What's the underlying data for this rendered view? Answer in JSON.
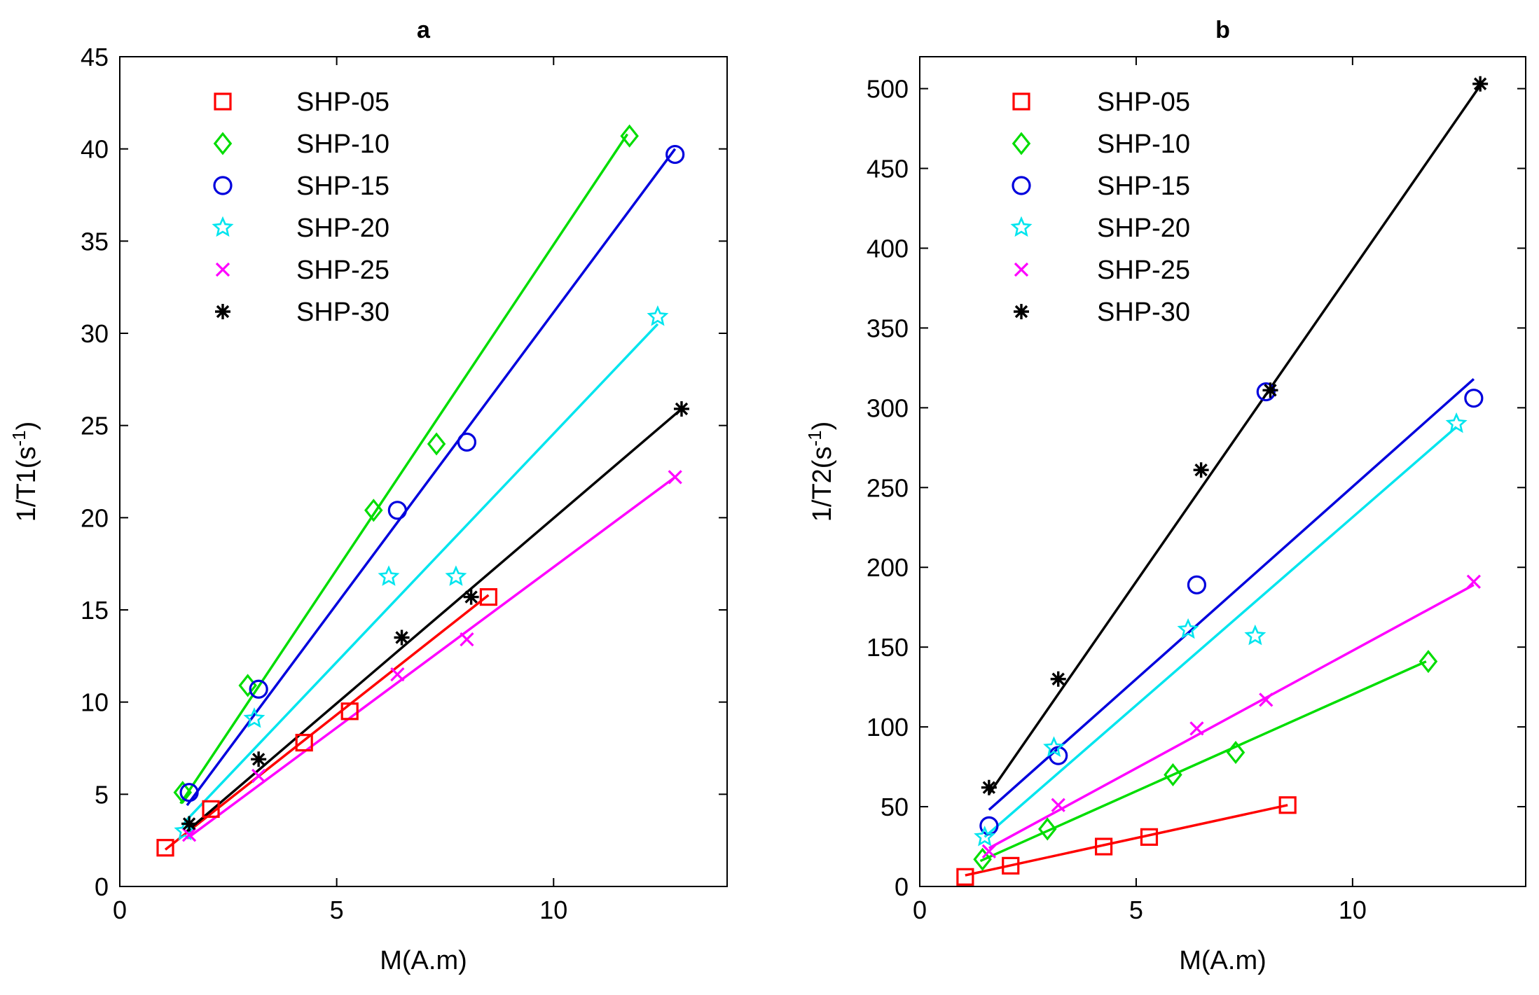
{
  "chart_data": [
    {
      "type": "scatter",
      "title": "a",
      "xlabel": "M(A.m)",
      "ylabel": "1/T1(s",
      "ylabel_sup": "-1",
      "ylabel_close": ")",
      "xlim": [
        0,
        14
      ],
      "ylim": [
        0,
        45
      ],
      "xticks": [
        0,
        5,
        10
      ],
      "yticks": [
        0,
        5,
        10,
        15,
        20,
        25,
        30,
        35,
        40,
        45
      ],
      "legend_position": "top-left",
      "series": [
        {
          "name": "SHP-05",
          "color": "#ff0000",
          "marker": "square",
          "x": [
            1.05,
            2.1,
            4.25,
            5.3,
            8.5
          ],
          "y": [
            2.1,
            4.2,
            7.8,
            9.5,
            15.7
          ],
          "fit_x": [
            1.05,
            8.5
          ],
          "fit_y": [
            2.0,
            15.8
          ]
        },
        {
          "name": "SHP-10",
          "color": "#00dd00",
          "marker": "diamond",
          "x": [
            1.45,
            2.95,
            5.85,
            7.3,
            11.75
          ],
          "y": [
            5.1,
            10.9,
            20.4,
            24.0,
            40.7
          ],
          "fit_x": [
            1.4,
            11.7
          ],
          "fit_y": [
            4.5,
            40.8
          ]
        },
        {
          "name": "SHP-15",
          "color": "#0000dd",
          "marker": "circle",
          "x": [
            1.6,
            3.2,
            6.4,
            8.0,
            12.8
          ],
          "y": [
            5.1,
            10.7,
            20.4,
            24.1,
            39.7
          ],
          "fit_x": [
            1.55,
            12.8
          ],
          "fit_y": [
            4.4,
            40.0
          ]
        },
        {
          "name": "SHP-20",
          "color": "#00e5ee",
          "marker": "star",
          "x": [
            1.5,
            3.1,
            6.2,
            7.75,
            12.4
          ],
          "y": [
            3.0,
            9.1,
            16.8,
            16.8,
            30.9
          ],
          "fit_x": [
            1.5,
            12.4
          ],
          "fit_y": [
            3.5,
            30.5
          ]
        },
        {
          "name": "SHP-25",
          "color": "#ff00ff",
          "marker": "x",
          "x": [
            1.6,
            3.2,
            6.4,
            8.0,
            12.8
          ],
          "y": [
            2.8,
            6.0,
            11.5,
            13.4,
            22.2
          ],
          "fit_x": [
            1.55,
            12.8
          ],
          "fit_y": [
            2.6,
            22.2
          ]
        },
        {
          "name": "SHP-30",
          "color": "#000000",
          "marker": "asterisk",
          "x": [
            1.6,
            3.2,
            6.5,
            8.1,
            12.95
          ],
          "y": [
            3.4,
            6.9,
            13.5,
            15.7,
            25.9
          ],
          "fit_x": [
            1.55,
            12.95
          ],
          "fit_y": [
            3.0,
            25.9
          ]
        }
      ]
    },
    {
      "type": "scatter",
      "title": "b",
      "xlabel": "M(A.m)",
      "ylabel": "1/T2(s",
      "ylabel_sup": "-1",
      "ylabel_close": ")",
      "xlim": [
        0,
        14
      ],
      "ylim": [
        0,
        520
      ],
      "xticks": [
        0,
        5,
        10
      ],
      "yticks": [
        0,
        50,
        100,
        150,
        200,
        250,
        300,
        350,
        400,
        450,
        500
      ],
      "legend_position": "top-left",
      "series": [
        {
          "name": "SHP-05",
          "color": "#ff0000",
          "marker": "square",
          "x": [
            1.05,
            2.1,
            4.25,
            5.3,
            8.5
          ],
          "y": [
            6,
            13,
            25,
            31,
            51
          ],
          "fit_x": [
            1.05,
            8.5
          ],
          "fit_y": [
            7,
            51
          ]
        },
        {
          "name": "SHP-10",
          "color": "#00dd00",
          "marker": "diamond",
          "x": [
            1.45,
            2.95,
            5.85,
            7.3,
            11.75
          ],
          "y": [
            17,
            36,
            70,
            84,
            141
          ],
          "fit_x": [
            1.4,
            11.7
          ],
          "fit_y": [
            16,
            141
          ]
        },
        {
          "name": "SHP-15",
          "color": "#0000dd",
          "marker": "circle",
          "x": [
            1.6,
            3.2,
            6.4,
            8.0,
            12.8
          ],
          "y": [
            38,
            82,
            189,
            310,
            306
          ],
          "fit_x": [
            1.6,
            12.8
          ],
          "fit_y": [
            48,
            318
          ]
        },
        {
          "name": "SHP-20",
          "color": "#00e5ee",
          "marker": "star",
          "x": [
            1.5,
            3.1,
            6.2,
            7.75,
            12.4
          ],
          "y": [
            31,
            87,
            161,
            157,
            290
          ],
          "fit_x": [
            1.5,
            12.4
          ],
          "fit_y": [
            31,
            288
          ]
        },
        {
          "name": "SHP-25",
          "color": "#ff00ff",
          "marker": "x",
          "x": [
            1.6,
            3.2,
            6.4,
            8.0,
            12.8
          ],
          "y": [
            22,
            51,
            99,
            117,
            191
          ],
          "fit_x": [
            1.6,
            12.8
          ],
          "fit_y": [
            24,
            189
          ]
        },
        {
          "name": "SHP-30",
          "color": "#000000",
          "marker": "asterisk",
          "x": [
            1.6,
            3.2,
            6.5,
            8.1,
            12.95
          ],
          "y": [
            62,
            130,
            261,
            311,
            503
          ],
          "fit_x": [
            1.6,
            12.95
          ],
          "fit_y": [
            58,
            502
          ]
        }
      ]
    }
  ]
}
